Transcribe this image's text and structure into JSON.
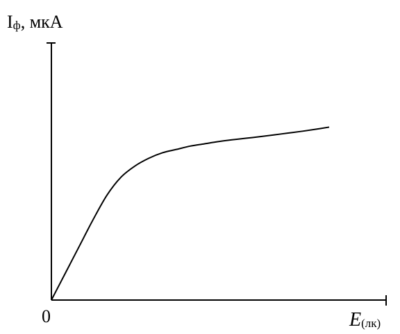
{
  "chart_data": {
    "type": "line",
    "title": "",
    "ylabel": {
      "main": "I",
      "subscript": "ф",
      "suffix": ", мкА"
    },
    "xlabel": {
      "main": "E",
      "subscript": "(лк)"
    },
    "origin_label": "0",
    "xlim": [
      0,
      100
    ],
    "ylim": [
      0,
      100
    ],
    "grid": false,
    "legend": "none",
    "series": [
      {
        "color": "#000000",
        "x": [
          0,
          5,
          10,
          15,
          20,
          25,
          30,
          35,
          40,
          45,
          50,
          55,
          60,
          65,
          70,
          75,
          80,
          85,
          90,
          95,
          100
        ],
        "y": [
          0,
          12,
          24,
          36,
          47,
          55,
          60,
          63.5,
          66,
          67.5,
          69,
          70,
          71,
          71.8,
          72.5,
          73.2,
          74,
          74.8,
          75.6,
          76.5,
          77.5
        ]
      }
    ],
    "colors": {
      "axis": "#000000",
      "line": "#000000",
      "background": "#ffffff"
    }
  }
}
